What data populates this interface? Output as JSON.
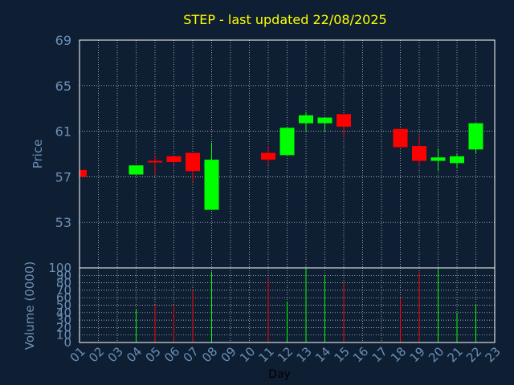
{
  "colors": {
    "background": "#0f1f33",
    "frame": "#ffffff",
    "grid": "#ffffff",
    "title": "#ffff00",
    "axis_text": "#6b8fb5",
    "tick_text": "#6b8fb5",
    "up": "#00ff00",
    "down": "#ff0000",
    "xlabel": "#000000"
  },
  "chart_data": {
    "type": "candlestick",
    "title": "STEP - last updated 22/08/2025",
    "xlabel": "Day",
    "price_panel": {
      "ylabel": "Price",
      "ylim": [
        49,
        69
      ],
      "yticks": [
        "53",
        "57",
        "61",
        "65",
        "69"
      ],
      "ytick_values": [
        53,
        57,
        61,
        65,
        69
      ],
      "grid": true
    },
    "volume_panel": {
      "ylabel": "Volume (0000)",
      "ylim": [
        0,
        100
      ],
      "yticks": [
        "0",
        "10",
        "20",
        "30",
        "40",
        "50",
        "60",
        "70",
        "80",
        "90",
        "100"
      ],
      "ytick_values": [
        0,
        10,
        20,
        30,
        40,
        50,
        60,
        70,
        80,
        90,
        100
      ],
      "grid": true
    },
    "categories": [
      "01",
      "02",
      "03",
      "04",
      "05",
      "06",
      "07",
      "08",
      "09",
      "10",
      "11",
      "12",
      "13",
      "14",
      "15",
      "16",
      "17",
      "18",
      "19",
      "20",
      "21",
      "22",
      "23"
    ],
    "candles": [
      {
        "day": "01",
        "open": 57.6,
        "close": 57.0,
        "high": 57.6,
        "low": 57.0,
        "volume": 0
      },
      {
        "day": "04",
        "open": 57.2,
        "close": 58.0,
        "high": 58.0,
        "low": 57.2,
        "volume": 45
      },
      {
        "day": "05",
        "open": 58.4,
        "close": 58.3,
        "high": 58.9,
        "low": 57.2,
        "volume": 50
      },
      {
        "day": "06",
        "open": 58.8,
        "close": 58.3,
        "high": 58.8,
        "low": 58.0,
        "volume": 50
      },
      {
        "day": "07",
        "open": 59.1,
        "close": 57.5,
        "high": 59.1,
        "low": 56.5,
        "volume": 70
      },
      {
        "day": "08",
        "open": 54.1,
        "close": 58.5,
        "high": 60.0,
        "low": 54.1,
        "volume": 95
      },
      {
        "day": "11",
        "open": 59.1,
        "close": 58.5,
        "high": 59.7,
        "low": 58.0,
        "volume": 85
      },
      {
        "day": "12",
        "open": 58.9,
        "close": 61.3,
        "high": 61.3,
        "low": 58.9,
        "volume": 55
      },
      {
        "day": "13",
        "open": 61.7,
        "close": 62.4,
        "high": 62.7,
        "low": 61.0,
        "volume": 100
      },
      {
        "day": "14",
        "open": 61.7,
        "close": 62.2,
        "high": 62.2,
        "low": 61.0,
        "volume": 90
      },
      {
        "day": "15",
        "open": 62.5,
        "close": 61.4,
        "high": 62.5,
        "low": 60.5,
        "volume": 80
      },
      {
        "day": "18",
        "open": 61.2,
        "close": 59.6,
        "high": 61.2,
        "low": 59.6,
        "volume": 60
      },
      {
        "day": "19",
        "open": 59.7,
        "close": 58.4,
        "high": 60.6,
        "low": 58.0,
        "volume": 95
      },
      {
        "day": "20",
        "open": 58.4,
        "close": 58.7,
        "high": 59.5,
        "low": 57.5,
        "volume": 100
      },
      {
        "day": "21",
        "open": 58.2,
        "close": 58.8,
        "high": 59.0,
        "low": 57.8,
        "volume": 40
      },
      {
        "day": "22",
        "open": 59.4,
        "close": 61.7,
        "high": 61.7,
        "low": 59.0,
        "volume": 50
      }
    ]
  }
}
